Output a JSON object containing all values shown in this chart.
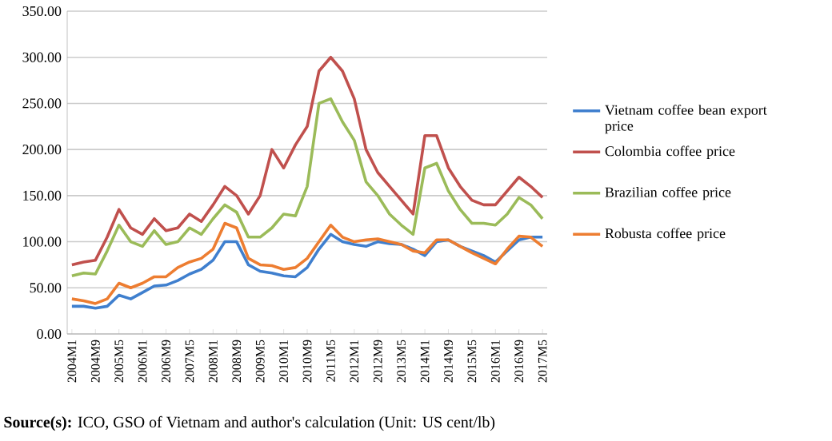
{
  "chart_data": {
    "type": "line",
    "categories": [
      "2004M1",
      null,
      "2004M9",
      null,
      "2005M5",
      null,
      "2006M1",
      null,
      "2006M9",
      null,
      "2007M5",
      null,
      "2008M1",
      null,
      "2008M9",
      null,
      "2009M5",
      null,
      "2010M1",
      null,
      "2010M9",
      null,
      "2011M5",
      null,
      "2012M1",
      null,
      "2012M9",
      null,
      "2013M5",
      null,
      "2014M1",
      null,
      "2014M9",
      null,
      "2015M5",
      null,
      "2016M1",
      null,
      "2016M9",
      null,
      "2017M5"
    ],
    "series": [
      {
        "name": "Vietnam coffee bean export price",
        "color": "#3f7fce",
        "values": [
          30,
          30,
          28,
          30,
          42,
          38,
          45,
          52,
          53,
          58,
          65,
          70,
          80,
          100,
          100,
          75,
          68,
          66,
          63,
          62,
          72,
          92,
          108,
          100,
          97,
          95,
          100,
          98,
          97,
          92,
          85,
          100,
          102,
          95,
          90,
          85,
          78,
          90,
          102,
          105,
          105
        ]
      },
      {
        "name": "Colombia coffee price",
        "color": "#c0504d",
        "values": [
          75,
          78,
          80,
          105,
          135,
          115,
          108,
          125,
          112,
          115,
          130,
          122,
          140,
          160,
          150,
          130,
          150,
          200,
          180,
          205,
          225,
          285,
          300,
          285,
          255,
          200,
          175,
          160,
          145,
          130,
          215,
          215,
          180,
          160,
          145,
          140,
          140,
          155,
          170,
          160,
          148
        ]
      },
      {
        "name": "Brazilian coffee price",
        "color": "#9bbb59",
        "values": [
          63,
          66,
          65,
          90,
          118,
          100,
          95,
          112,
          97,
          100,
          115,
          108,
          125,
          140,
          132,
          105,
          105,
          115,
          130,
          128,
          160,
          250,
          255,
          230,
          210,
          165,
          150,
          130,
          118,
          108,
          180,
          185,
          155,
          135,
          120,
          120,
          118,
          130,
          148,
          140,
          125
        ]
      },
      {
        "name": "Robusta coffee price",
        "color": "#ed7d31",
        "values": [
          38,
          36,
          33,
          38,
          55,
          50,
          55,
          62,
          62,
          72,
          78,
          82,
          92,
          120,
          115,
          82,
          75,
          74,
          70,
          72,
          82,
          100,
          118,
          105,
          100,
          102,
          103,
          100,
          97,
          90,
          88,
          102,
          102,
          95,
          88,
          82,
          76,
          92,
          106,
          105,
          95
        ]
      }
    ],
    "ylim": [
      0,
      350
    ],
    "yticks": [
      {
        "value": 0,
        "label": "0.00"
      },
      {
        "value": 50,
        "label": "50.00"
      },
      {
        "value": 100,
        "label": "100.00"
      },
      {
        "value": 150,
        "label": "150.00"
      },
      {
        "value": 200,
        "label": "200.00"
      },
      {
        "value": 250,
        "label": "250.00"
      },
      {
        "value": 300,
        "label": "300.00"
      },
      {
        "value": 350,
        "label": "350.00"
      }
    ],
    "grid": "y",
    "legend": "right",
    "marker": "none",
    "line_style": "solid",
    "annotations": [
      "**Source(s):** ICO, GSO of Vietnam and author's calculation (Unit: US cent/lb)"
    ]
  }
}
